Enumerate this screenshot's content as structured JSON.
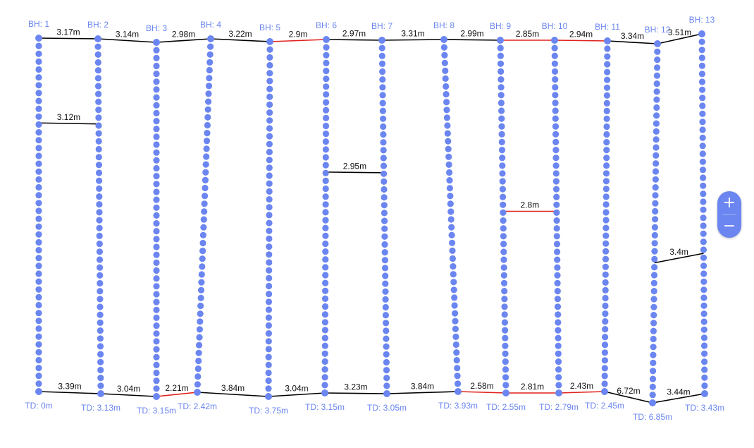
{
  "colors": {
    "node": "#6b86f0",
    "label": "#6b86f0",
    "normal_link": "#000000",
    "highlight_link": "#e0201b"
  },
  "boreholes": [
    {
      "name": "BH: 1",
      "td": "TD: 0m"
    },
    {
      "name": "BH: 2",
      "td": "TD: 3.13m"
    },
    {
      "name": "BH: 3",
      "td": "TD: 3.15m"
    },
    {
      "name": "BH: 4",
      "td": "TD: 2.42m"
    },
    {
      "name": "BH: 5",
      "td": "TD: 3.75m"
    },
    {
      "name": "BH: 6",
      "td": "TD: 3.15m"
    },
    {
      "name": "BH: 7",
      "td": "TD: 3.05m"
    },
    {
      "name": "BH: 8",
      "td": "TD: 3.93m"
    },
    {
      "name": "BH: 9",
      "td": "TD: 2.55m"
    },
    {
      "name": "BH: 10",
      "td": "TD: 2.79m"
    },
    {
      "name": "BH: 11",
      "td": "TD: 2.45m"
    },
    {
      "name": "BH: 12",
      "td": "TD: 6.85m"
    },
    {
      "name": "BH: 13",
      "td": "TD: 3.43m"
    }
  ],
  "top_links": [
    {
      "label": "3.17m",
      "highlight": false
    },
    {
      "label": "3.14m",
      "highlight": false
    },
    {
      "label": "2.98m",
      "highlight": false
    },
    {
      "label": "3.22m",
      "highlight": false
    },
    {
      "label": "2.9m",
      "highlight": true
    },
    {
      "label": "2.97m",
      "highlight": false
    },
    {
      "label": "3.31m",
      "highlight": false
    },
    {
      "label": "2.99m",
      "highlight": false
    },
    {
      "label": "2.85m",
      "highlight": true
    },
    {
      "label": "2.94m",
      "highlight": true
    },
    {
      "label": "3.34m",
      "highlight": false
    },
    {
      "label": "3.51m",
      "highlight": false
    }
  ],
  "bottom_links": [
    {
      "label": "3.39m",
      "highlight": false
    },
    {
      "label": "3.04m",
      "highlight": false
    },
    {
      "label": "2.21m",
      "highlight": true
    },
    {
      "label": "3.84m",
      "highlight": false
    },
    {
      "label": "3.04m",
      "highlight": false
    },
    {
      "label": "3.23m",
      "highlight": false
    },
    {
      "label": "3.84m",
      "highlight": false
    },
    {
      "label": "2.58m",
      "highlight": true
    },
    {
      "label": "2.81m",
      "highlight": true
    },
    {
      "label": "2.43m",
      "highlight": true
    },
    {
      "label": "6.72m",
      "highlight": false
    },
    {
      "label": "3.44m",
      "highlight": false
    }
  ],
  "middle_links": [
    {
      "from": 0,
      "label": "3.12m",
      "highlight": false
    },
    {
      "from": 5,
      "label": "2.95m",
      "highlight": false
    },
    {
      "from": 8,
      "label": "2.8m",
      "highlight": true
    },
    {
      "from": 11,
      "label": "3.4m",
      "highlight": false
    }
  ],
  "zoom": {
    "in_label": "+",
    "out_label": "−"
  }
}
